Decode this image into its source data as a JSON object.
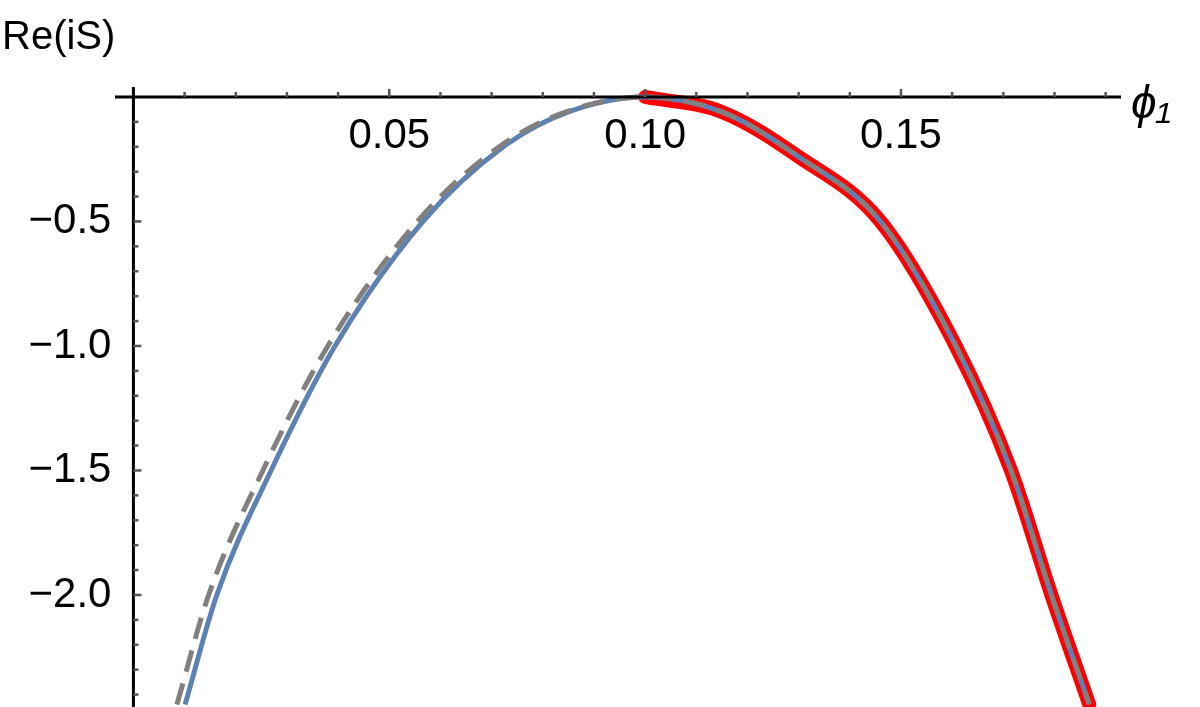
{
  "chart_data": {
    "type": "line",
    "xlabel": "ϕ₁",
    "ylabel": "Re(iS)",
    "xlim": [
      -0.0036,
      0.193
    ],
    "ylim": [
      -2.45,
      0.04
    ],
    "xticks": [
      {
        "value": 0.01,
        "label": null
      },
      {
        "value": 0.02,
        "label": null
      },
      {
        "value": 0.03,
        "label": null
      },
      {
        "value": 0.04,
        "label": null
      },
      {
        "value": 0.05,
        "label": "0.05"
      },
      {
        "value": 0.06,
        "label": null
      },
      {
        "value": 0.07,
        "label": null
      },
      {
        "value": 0.08,
        "label": null
      },
      {
        "value": 0.09,
        "label": null
      },
      {
        "value": 0.1,
        "label": "0.10"
      },
      {
        "value": 0.11,
        "label": null
      },
      {
        "value": 0.12,
        "label": null
      },
      {
        "value": 0.13,
        "label": null
      },
      {
        "value": 0.14,
        "label": null
      },
      {
        "value": 0.15,
        "label": "0.15"
      },
      {
        "value": 0.16,
        "label": null
      },
      {
        "value": 0.17,
        "label": null
      },
      {
        "value": 0.18,
        "label": null
      },
      {
        "value": 0.19,
        "label": null
      }
    ],
    "yticks": [
      {
        "value": -0.1,
        "label": null
      },
      {
        "value": -0.2,
        "label": null
      },
      {
        "value": -0.3,
        "label": null
      },
      {
        "value": -0.4,
        "label": null
      },
      {
        "value": -0.5,
        "label": "−0.5"
      },
      {
        "value": -0.6,
        "label": null
      },
      {
        "value": -0.7,
        "label": null
      },
      {
        "value": -0.8,
        "label": null
      },
      {
        "value": -0.9,
        "label": null
      },
      {
        "value": -1.0,
        "label": "−1.0"
      },
      {
        "value": -1.1,
        "label": null
      },
      {
        "value": -1.2,
        "label": null
      },
      {
        "value": -1.3,
        "label": null
      },
      {
        "value": -1.4,
        "label": null
      },
      {
        "value": -1.5,
        "label": "−1.5"
      },
      {
        "value": -1.6,
        "label": null
      },
      {
        "value": -1.7,
        "label": null
      },
      {
        "value": -1.8,
        "label": null
      },
      {
        "value": -1.9,
        "label": null
      },
      {
        "value": -2.0,
        "label": "−2.0"
      },
      {
        "value": -2.1,
        "label": null
      },
      {
        "value": -2.2,
        "label": null
      },
      {
        "value": -2.3,
        "label": null
      },
      {
        "value": -2.4,
        "label": null
      }
    ],
    "series": [
      {
        "color": "#ff0000",
        "x": [
          0.1,
          0.115,
          0.13,
          0.146,
          0.1607,
          0.1715,
          0.1794,
          0.1868
        ],
        "values": [
          0,
          -0.06,
          -0.24,
          -0.5,
          -1.0,
          -1.5,
          -2.0,
          -2.44
        ]
      },
      {
        "color": "#5e81b5",
        "x": [
          0.0101,
          0.0163,
          0.0269,
          0.0394,
          0.0566,
          0.0723,
          0.085,
          0.1,
          0.115,
          0.13,
          0.146,
          0.1607,
          0.1715,
          0.1794,
          0.1868
        ],
        "values": [
          -2.44,
          -2.0,
          -1.5,
          -1.0,
          -0.5,
          -0.2,
          -0.06,
          0,
          -0.06,
          -0.24,
          -0.5,
          -1.0,
          -1.5,
          -2.0,
          -2.44
        ]
      },
      {
        "color": "#808080",
        "line_style": "dashed",
        "x": [
          0.0085,
          0.0147,
          0.0253,
          0.038,
          0.0555,
          0.0715,
          0.0845,
          0.1,
          0.115,
          0.13,
          0.146,
          0.1607,
          0.1715,
          0.1794,
          0.1868
        ],
        "values": [
          -2.44,
          -2.0,
          -1.5,
          -1.0,
          -0.5,
          -0.2,
          -0.06,
          0,
          -0.06,
          -0.24,
          -0.5,
          -1.0,
          -1.5,
          -2.0,
          -2.44
        ]
      }
    ]
  }
}
